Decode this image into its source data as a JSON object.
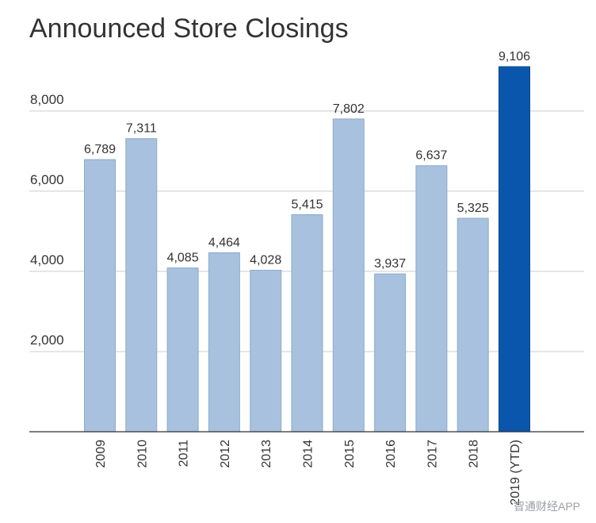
{
  "chart_data": {
    "type": "bar",
    "title": "Announced Store Closings",
    "categories": [
      "2009",
      "2010",
      "2011",
      "2012",
      "2013",
      "2014",
      "2015",
      "2016",
      "2017",
      "2018",
      "2019 (YTD)"
    ],
    "values": [
      6789,
      7311,
      4085,
      4464,
      4028,
      5415,
      7802,
      3937,
      6637,
      5325,
      9106
    ],
    "data_labels": [
      "6,789",
      "7,311",
      "4,085",
      "4,464",
      "4,028",
      "5,415",
      "7,802",
      "3,937",
      "6,637",
      "5,325",
      "9,106"
    ],
    "yticks": [
      2000,
      4000,
      6000,
      8000
    ],
    "ytick_labels": [
      "2,000",
      "4,000",
      "6,000",
      "8,000"
    ],
    "ylim": [
      0,
      9106
    ],
    "grid": true,
    "colors": {
      "default": "#a7c1de",
      "highlight": "#0b56ad",
      "grid": "#cccccc",
      "axis": "#333333"
    },
    "highlight_index": 10
  },
  "watermark": "智通财经APP"
}
